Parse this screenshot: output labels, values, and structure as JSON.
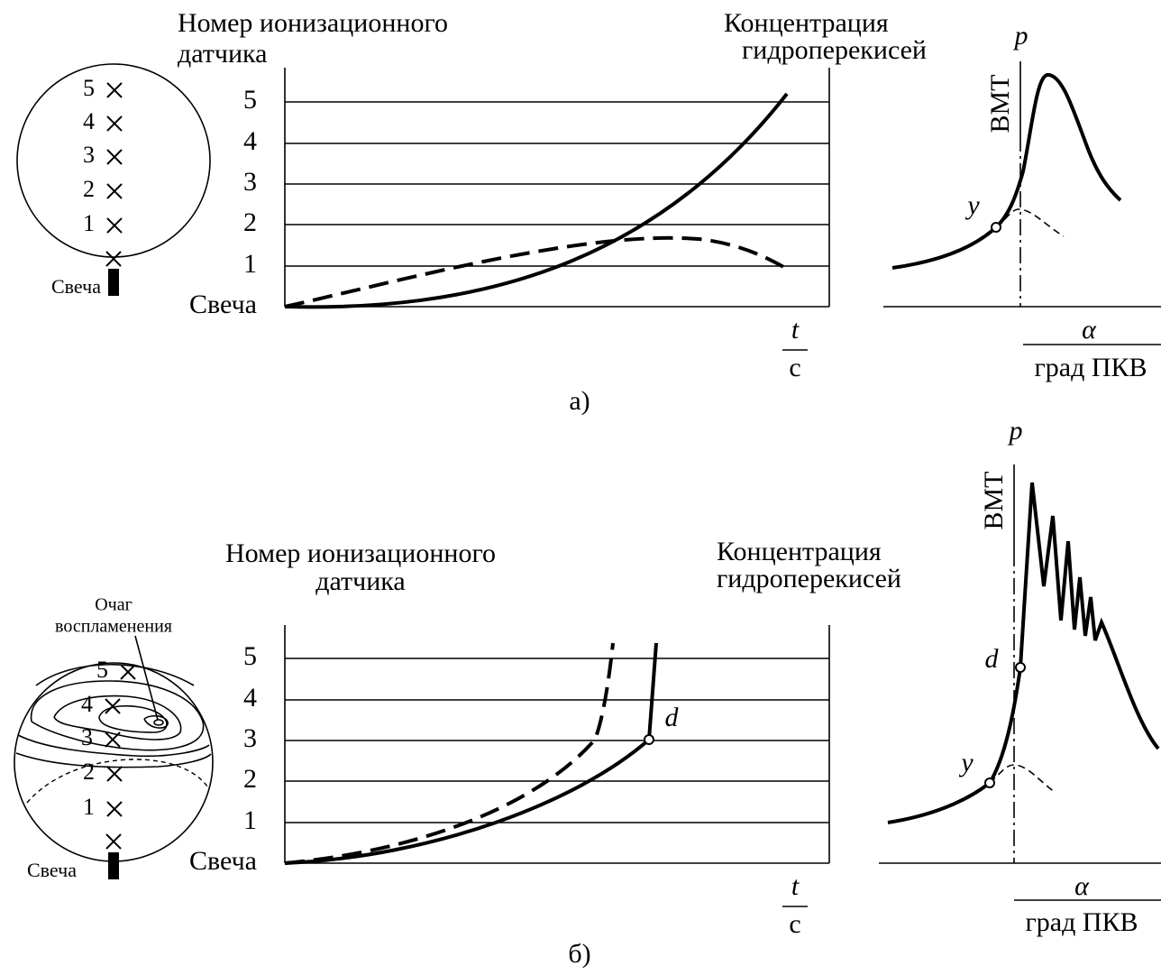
{
  "panels": [
    {
      "caption": "а)",
      "chamber": {
        "sensors": [
          "5",
          "4",
          "3",
          "2",
          "1"
        ],
        "spark": "Свеча"
      },
      "main": {
        "title_1": "Номер ионизационного",
        "title_2": "датчика",
        "levels": [
          "Свеча",
          "1",
          "2",
          "3",
          "4",
          "5"
        ],
        "right_1": "Концентрация",
        "right_2": "гидроперекисей",
        "x_num": "t",
        "x_den": "с"
      },
      "pressure": {
        "p": "p",
        "tdc": "ВМТ",
        "point_y": "y",
        "x_num": "α",
        "x_den": "град ПКВ"
      }
    },
    {
      "caption": "б)",
      "chamber": {
        "sensors": [
          "5",
          "4",
          "3",
          "2",
          "1"
        ],
        "spark": "Свеча",
        "focus_1": "Очаг",
        "focus_2": "воспламенения"
      },
      "main": {
        "title_1": "Номер ионизационного",
        "title_2": "датчика",
        "levels": [
          "Свеча",
          "1",
          "2",
          "3",
          "4",
          "5"
        ],
        "right_1": "Концентрация",
        "right_2": "гидроперекисей",
        "x_num": "t",
        "x_den": "с",
        "point_d": "d"
      },
      "pressure": {
        "p": "p",
        "tdc": "ВМТ",
        "point_d": "d",
        "point_y": "y",
        "x_num": "α",
        "x_den": "град ПКВ"
      }
    }
  ]
}
